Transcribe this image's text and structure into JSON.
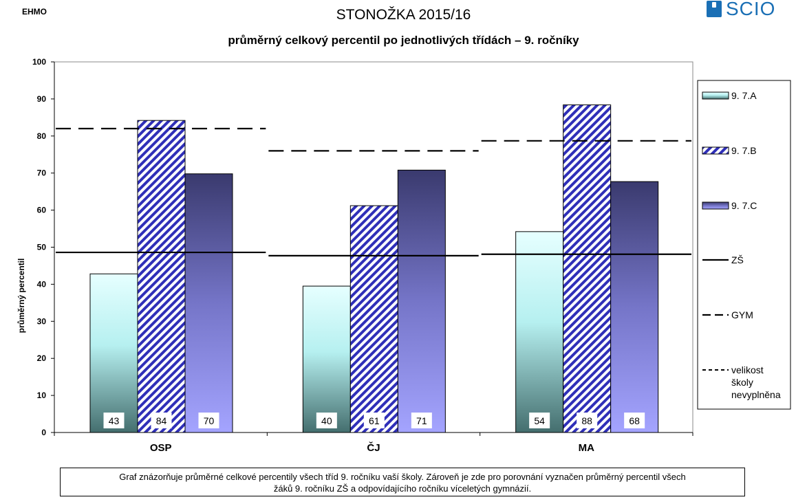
{
  "header": {
    "corner_label": "EHMO",
    "logo_text": "SCIO"
  },
  "chart_data": {
    "type": "bar",
    "title": "STONOŽKA 2015/16",
    "subtitle": "průměrný celkový percentil po jednotlivých třídách – 9. ročníky",
    "xlabel": "",
    "ylabel": "průměrný percentil",
    "ylim": [
      0,
      100
    ],
    "yticks": [
      0,
      10,
      20,
      30,
      40,
      50,
      60,
      70,
      80,
      90,
      100
    ],
    "grid": false,
    "legend_position": "right",
    "categories": [
      "OSP",
      "ČJ",
      "MA"
    ],
    "series": [
      {
        "name": "9. 7.A",
        "values": [
          43,
          40,
          54
        ],
        "display_values": [
          42.8,
          39.5,
          54.2
        ],
        "color": "#b8f2f2",
        "style": "gradient-cyan"
      },
      {
        "name": "9. 7.B",
        "values": [
          84,
          61,
          88
        ],
        "display_values": [
          84.2,
          61.2,
          88.4
        ],
        "color": "#3a3ad6",
        "style": "diagonal-hatch"
      },
      {
        "name": "9. 7.C",
        "values": [
          70,
          71,
          68
        ],
        "display_values": [
          69.8,
          70.8,
          67.7
        ],
        "color": "#5a5aa8",
        "style": "gradient-purple"
      }
    ],
    "reference_lines": [
      {
        "name": "ZŠ",
        "style": "solid",
        "values": [
          48.6,
          47.7,
          48.1
        ]
      },
      {
        "name": "GYM",
        "style": "long-dash",
        "values": [
          82.0,
          76.0,
          78.7
        ]
      }
    ],
    "legend_extra": {
      "name": "velikost školy nevyplněna",
      "lines": [
        "velikost",
        "školy",
        "nevyplněna"
      ],
      "style": "short-dash"
    }
  },
  "note": {
    "lines": [
      "Graf znázorňuje průměrné celkové percentily všech tříd 9. ročníku vaší školy. Zároveň je zde pro porovnání vyznačen průměrný percentil všech",
      "žáků  9. ročníku ZŠ a odpovídajícího ročníku víceletých gymnázií."
    ]
  }
}
